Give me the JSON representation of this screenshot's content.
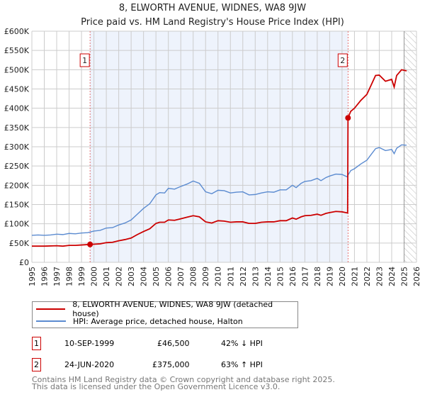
{
  "title": "8, ELWORTH AVENUE, WIDNES, WA8 9JW",
  "subtitle": "Price paid vs. HM Land Registry's House Price Index (HPI)",
  "colors": {
    "property": "#cc0000",
    "hpi": "#5b8bd0",
    "shade": "#eef3fc"
  },
  "chart_data": {
    "type": "line",
    "title": "8, ELWORTH AVENUE, WIDNES, WA8 9JW",
    "xlim": [
      1995,
      2026
    ],
    "ylim": [
      0,
      600000
    ],
    "x_ticks": [
      "1995",
      "1996",
      "1997",
      "1998",
      "1999",
      "2000",
      "2001",
      "2002",
      "2003",
      "2004",
      "2005",
      "2006",
      "2007",
      "2008",
      "2009",
      "2010",
      "2011",
      "2012",
      "2013",
      "2014",
      "2015",
      "2016",
      "2017",
      "2018",
      "2019",
      "2020",
      "2021",
      "2022",
      "2023",
      "2024",
      "2025",
      "2026"
    ],
    "y_ticks": [
      {
        "v": 0,
        "label": "£0"
      },
      {
        "v": 50000,
        "label": "£50K"
      },
      {
        "v": 100000,
        "label": "£100K"
      },
      {
        "v": 150000,
        "label": "£150K"
      },
      {
        "v": 200000,
        "label": "£200K"
      },
      {
        "v": 250000,
        "label": "£250K"
      },
      {
        "v": 300000,
        "label": "£300K"
      },
      {
        "v": 350000,
        "label": "£350K"
      },
      {
        "v": 400000,
        "label": "£400K"
      },
      {
        "v": 450000,
        "label": "£450K"
      },
      {
        "v": 500000,
        "label": "£500K"
      },
      {
        "v": 550000,
        "label": "£550K"
      },
      {
        "v": 600000,
        "label": "£600K"
      }
    ],
    "grid": true,
    "shaded_range": [
      1999.69,
      2020.48
    ],
    "forecast_hatch_from": 2025.0,
    "series": [
      {
        "name": "8, ELWORTH AVENUE, WIDNES, WA8 9JW (detached house)",
        "color": "#cc0000",
        "points": [
          [
            1995,
            42
          ],
          [
            1996,
            42
          ],
          [
            1997,
            43
          ],
          [
            1997.5,
            42
          ],
          [
            1998,
            44
          ],
          [
            1998.5,
            44
          ],
          [
            1999,
            45
          ],
          [
            1999.69,
            46.5
          ],
          [
            2000,
            47
          ],
          [
            2000.5,
            48
          ],
          [
            2001,
            51
          ],
          [
            2001.5,
            52
          ],
          [
            2002,
            56
          ],
          [
            2002.5,
            59
          ],
          [
            2003,
            63
          ],
          [
            2003.5,
            72
          ],
          [
            2004,
            80
          ],
          [
            2004.5,
            87
          ],
          [
            2005,
            101
          ],
          [
            2005.3,
            104
          ],
          [
            2005.7,
            104
          ],
          [
            2006,
            110
          ],
          [
            2006.5,
            109
          ],
          [
            2007,
            113
          ],
          [
            2007.5,
            117
          ],
          [
            2008,
            121
          ],
          [
            2008.5,
            118
          ],
          [
            2009,
            105
          ],
          [
            2009.5,
            102
          ],
          [
            2010,
            108
          ],
          [
            2010.5,
            107
          ],
          [
            2011,
            104
          ],
          [
            2011.5,
            105
          ],
          [
            2012,
            105
          ],
          [
            2012.5,
            101
          ],
          [
            2013,
            101
          ],
          [
            2013.5,
            104
          ],
          [
            2014,
            105
          ],
          [
            2014.5,
            105
          ],
          [
            2015,
            108
          ],
          [
            2015.5,
            108
          ],
          [
            2016,
            115
          ],
          [
            2016.3,
            112
          ],
          [
            2016.7,
            118
          ],
          [
            2017,
            121
          ],
          [
            2017.5,
            122
          ],
          [
            2018,
            125
          ],
          [
            2018.3,
            122
          ],
          [
            2018.7,
            127
          ],
          [
            2019,
            129
          ],
          [
            2019.5,
            132
          ],
          [
            2020,
            131
          ],
          [
            2020.45,
            128
          ],
          [
            2020.48,
            375
          ],
          [
            2020.7,
            392
          ],
          [
            2021,
            400
          ],
          [
            2021.5,
            420
          ],
          [
            2022,
            436
          ],
          [
            2022.3,
            457
          ],
          [
            2022.7,
            485
          ],
          [
            2023,
            486
          ],
          [
            2023.5,
            470
          ],
          [
            2024,
            475
          ],
          [
            2024.2,
            455
          ],
          [
            2024.4,
            485
          ],
          [
            2024.8,
            500
          ],
          [
            2025.2,
            497
          ]
        ]
      },
      {
        "name": "HPI: Average price, detached house, Halton",
        "color": "#5b8bd0",
        "points": [
          [
            1995,
            70
          ],
          [
            1995.5,
            71
          ],
          [
            1996,
            70
          ],
          [
            1996.5,
            71
          ],
          [
            1997,
            73
          ],
          [
            1997.5,
            72
          ],
          [
            1998,
            75
          ],
          [
            1998.5,
            74
          ],
          [
            1999,
            76
          ],
          [
            1999.5,
            77
          ],
          [
            2000,
            81
          ],
          [
            2000.5,
            83
          ],
          [
            2001,
            89
          ],
          [
            2001.5,
            90
          ],
          [
            2002,
            97
          ],
          [
            2002.5,
            102
          ],
          [
            2003,
            110
          ],
          [
            2003.5,
            125
          ],
          [
            2004,
            140
          ],
          [
            2004.5,
            152
          ],
          [
            2005,
            175
          ],
          [
            2005.3,
            181
          ],
          [
            2005.7,
            180
          ],
          [
            2006,
            192
          ],
          [
            2006.5,
            190
          ],
          [
            2007,
            197
          ],
          [
            2007.5,
            203
          ],
          [
            2008,
            211
          ],
          [
            2008.5,
            205
          ],
          [
            2009,
            183
          ],
          [
            2009.5,
            178
          ],
          [
            2010,
            187
          ],
          [
            2010.5,
            186
          ],
          [
            2011,
            180
          ],
          [
            2011.5,
            182
          ],
          [
            2012,
            183
          ],
          [
            2012.5,
            175
          ],
          [
            2013,
            176
          ],
          [
            2013.5,
            180
          ],
          [
            2014,
            183
          ],
          [
            2014.5,
            182
          ],
          [
            2015,
            188
          ],
          [
            2015.5,
            188
          ],
          [
            2016,
            200
          ],
          [
            2016.3,
            194
          ],
          [
            2016.7,
            205
          ],
          [
            2017,
            210
          ],
          [
            2017.5,
            212
          ],
          [
            2018,
            218
          ],
          [
            2018.3,
            212
          ],
          [
            2018.7,
            220
          ],
          [
            2019,
            224
          ],
          [
            2019.5,
            229
          ],
          [
            2020,
            228
          ],
          [
            2020.4,
            222
          ],
          [
            2020.7,
            238
          ],
          [
            2021,
            243
          ],
          [
            2021.5,
            255
          ],
          [
            2022,
            265
          ],
          [
            2022.3,
            278
          ],
          [
            2022.7,
            295
          ],
          [
            2023,
            298
          ],
          [
            2023.5,
            290
          ],
          [
            2024,
            293
          ],
          [
            2024.2,
            282
          ],
          [
            2024.4,
            296
          ],
          [
            2024.8,
            305
          ],
          [
            2025.2,
            304
          ]
        ]
      }
    ],
    "units": "£K",
    "sales": [
      {
        "label": "1",
        "x": 1999.69,
        "y": 46.5
      },
      {
        "label": "2",
        "x": 2020.48,
        "y": 375
      }
    ],
    "legend_position": "below"
  },
  "legend": {
    "property": "8, ELWORTH AVENUE, WIDNES, WA8 9JW (detached house)",
    "hpi": "HPI: Average price, detached house, Halton"
  },
  "transactions": [
    {
      "num": "1",
      "date": "10-SEP-1999",
      "price": "£46,500",
      "hpi": "42% ↓ HPI"
    },
    {
      "num": "2",
      "date": "24-JUN-2020",
      "price": "£375,000",
      "hpi": "63% ↑ HPI"
    }
  ],
  "footer": {
    "line1": "Contains HM Land Registry data © Crown copyright and database right 2025.",
    "line2": "This data is licensed under the Open Government Licence v3.0."
  }
}
